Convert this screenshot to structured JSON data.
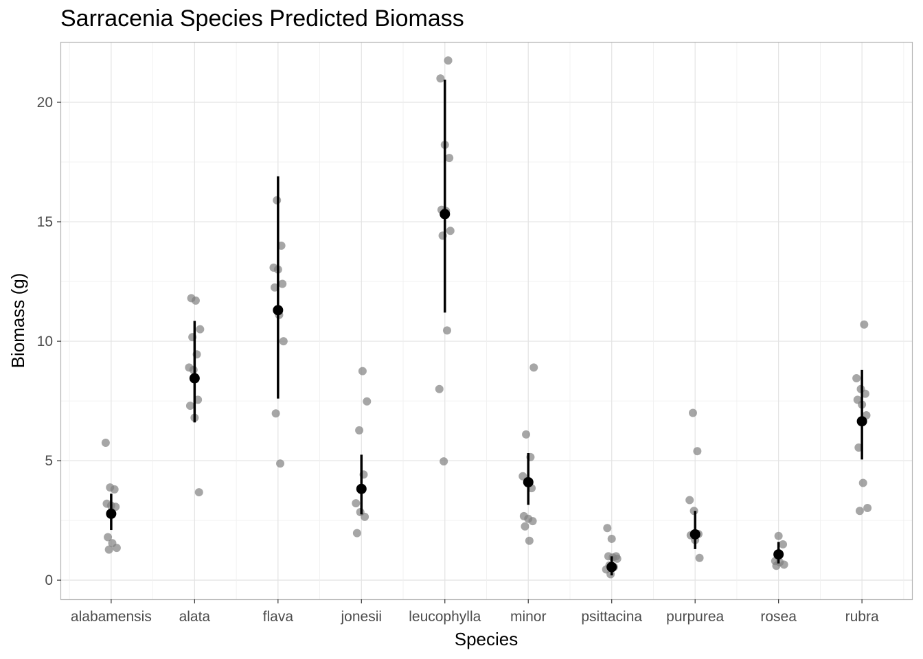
{
  "chart_data": {
    "type": "scatter",
    "title": "Sarracenia Species Predicted Biomass",
    "xlabel": "Species",
    "ylabel": "Biomass (g)",
    "categories": [
      "alabamensis",
      "alata",
      "flava",
      "jonesii",
      "leucophylla",
      "minor",
      "psittacina",
      "purpurea",
      "rosea",
      "rubra"
    ],
    "ylim": [
      -0.8,
      22.5
    ],
    "yticks": [
      0,
      5,
      10,
      15,
      20
    ],
    "grid": true,
    "legend": "none",
    "colors": {
      "points": "#808080",
      "summary": "#000000",
      "grid": "#e3e3e3",
      "panel_border": "#b3b3b3"
    },
    "series": [
      {
        "values": [
          [
            5.75,
            3.88,
            3.8,
            3.2,
            3.12,
            3.07,
            1.8,
            1.55,
            1.35,
            1.28
          ],
          [
            11.8,
            11.7,
            10.5,
            10.17,
            9.45,
            8.9,
            8.8,
            7.55,
            7.3,
            6.8,
            3.68
          ],
          [
            15.9,
            14.0,
            13.08,
            13.0,
            12.4,
            12.25,
            11.1,
            10.0,
            6.98,
            4.88
          ],
          [
            8.75,
            7.48,
            6.27,
            4.42,
            3.22,
            2.85,
            2.65,
            1.97
          ],
          [
            21.75,
            21.0,
            18.22,
            17.67,
            15.5,
            15.45,
            14.62,
            14.42,
            10.45,
            8.0,
            4.97
          ],
          [
            8.9,
            6.1,
            5.15,
            4.35,
            4.15,
            3.85,
            2.68,
            2.57,
            2.47,
            2.25,
            1.65
          ],
          [
            2.18,
            1.73,
            1.0,
            1.0,
            0.95,
            0.9,
            0.62,
            0.55,
            0.45,
            0.25
          ],
          [
            7.0,
            5.4,
            3.35,
            2.9,
            1.93,
            1.88,
            1.68,
            0.93
          ],
          [
            1.85,
            1.5,
            0.8,
            0.75,
            0.65,
            0.6
          ],
          [
            10.7,
            8.45,
            8.0,
            7.8,
            7.55,
            7.35,
            6.9,
            5.55,
            4.07,
            3.02,
            2.9
          ]
        ]
      },
      {
        "mean": [
          2.78,
          8.45,
          11.3,
          3.82,
          15.32,
          4.1,
          0.55,
          1.92,
          1.08,
          6.65
        ],
        "lower": [
          2.1,
          6.6,
          7.6,
          2.75,
          11.2,
          3.15,
          0.2,
          1.3,
          0.7,
          5.05
        ],
        "upper": [
          3.62,
          10.85,
          16.9,
          5.25,
          20.95,
          5.32,
          1.0,
          2.9,
          1.6,
          8.8
        ]
      }
    ]
  }
}
